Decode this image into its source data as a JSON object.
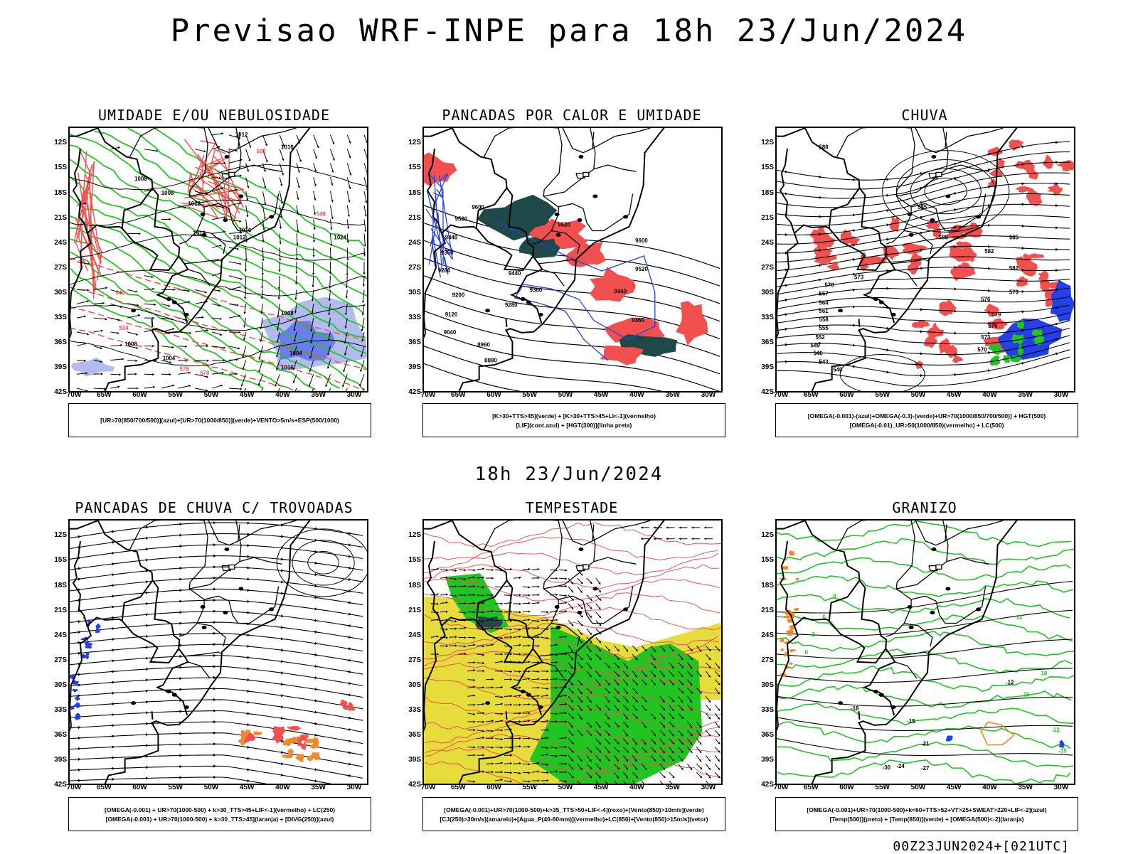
{
  "header": {
    "title": "Previsao WRF-INPE  para 18h 23/Jun/2024"
  },
  "mid_time": "18h 23/Jun/2024",
  "footer": "00Z23JUN2024+[021UTC]",
  "axes": {
    "lat_labels": [
      "12S",
      "15S",
      "18S",
      "21S",
      "24S",
      "27S",
      "30S",
      "33S",
      "36S",
      "39S",
      "42S"
    ],
    "lon_labels": [
      "70W",
      "65W",
      "60W",
      "55W",
      "50W",
      "45W",
      "40W",
      "35W",
      "30W"
    ]
  },
  "colors": {
    "red": "#f24f4f",
    "green": "#21c421",
    "blue": "#2440e8",
    "lavender": "#aab4ee",
    "dark_teal": "#1f4848",
    "yellow": "#e6dc3c",
    "orange": "#ef8a2a",
    "black": "#000000"
  },
  "panels": [
    {
      "title": "UMIDADE E/OU NEBULOSIDADE",
      "legend": [
        "[UR>70(850/700/500)](azul)+[UR>70(1000/850)](verde)+VENTO>5m/s+ESP(500/1000)"
      ],
      "contour_labels": [
        "1012",
        "1016",
        "1008",
        "1008",
        "1012",
        "1016",
        "1012",
        "1012",
        "1024",
        "1008",
        "1004",
        "1016",
        "1008",
        "1004",
        "576",
        "570",
        "552",
        "546",
        "540",
        "534"
      ]
    },
    {
      "title": "PANCADAS POR CALOR E UMIDADE",
      "legend": [
        "[K>30+TTS>45](verde) + [K>30+TTS>45+LI<-1](vermelho)",
        "[LIF](cont.azul) + [HGT(300)](linha preta)"
      ],
      "contour_labels": [
        "9600",
        "9520",
        "9440",
        "9360",
        "9280",
        "9200",
        "9120",
        "9040",
        "8960",
        "8880",
        "9600",
        "9520",
        "9520",
        "9440",
        "9360",
        "9280",
        "9440",
        "9360"
      ]
    },
    {
      "title": "CHUVA",
      "legend": [
        "[OMEGA(-0.001)-(azul)+OMEGA(-0.3)-(verde)+UR>70(1000/850/700/500)] + HGT(500)",
        "[OMEGA(-0.01)_UR>50(1000/850)(vermelho) + LC(500)"
      ],
      "contour_labels": [
        "588",
        "585",
        "585",
        "582",
        "579",
        "576",
        "573",
        "570",
        "567",
        "564",
        "561",
        "558",
        "555",
        "552",
        "549",
        "546",
        "543",
        "540",
        "585",
        "582",
        "579",
        "576",
        "573",
        "570"
      ]
    },
    {
      "title": "PANCADAS DE CHUVA C/ TROVOADAS",
      "legend": [
        "[OMEGA(-0.001) + UR>70(1000-500) + k>30_TTS>45+LIF<-1](vermelho) + LC(250)",
        "[OMEGA(-0.001) + UR>70(1000-500) + k>30_TTS>45](laranja) + [DIVG(250)](azul)"
      ],
      "contour_labels": []
    },
    {
      "title": "TEMPESTADE",
      "legend": [
        "[OMEGA(-0.001)+UR>70(1000-500)+k>35_TTS>50+LIF<-4](roxo)+[Vento(850)>10m/s](verde)",
        "[CJ(250)>30m/s](amarelo)+[Agua_P(40-60mm)](vermelho)+LC(850)+[Vento(850)>15m/s](vetor)"
      ],
      "contour_labels": []
    },
    {
      "title": "GRANIZO",
      "legend": [
        "[OMEGA(-0.001)+UR>70(1000-500)+k<60+TTS>52+VT>25+SWEAT>220+LIF<-2](azul)",
        "[Temp(500)](preto) + [Temp(850)](verde) + [OMEGA(500)<-2](laranja)"
      ],
      "contour_labels": [
        "-12",
        "-15",
        "-18",
        "-21",
        "-24",
        "-27",
        "-30",
        "0",
        "3",
        "6",
        "9",
        "12",
        "15",
        "18",
        "-12",
        "-15"
      ]
    }
  ]
}
